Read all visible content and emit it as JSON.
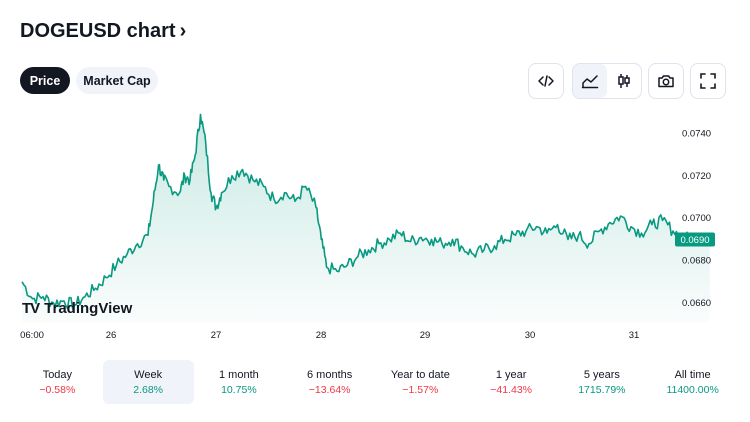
{
  "header": {
    "title": "DOGEUSD chart",
    "chevron": "›"
  },
  "tabs": [
    {
      "label": "Price",
      "active": true
    },
    {
      "label": "Market Cap",
      "active": false
    }
  ],
  "toolbar": {
    "icons": [
      "embed-code-icon",
      "area-chart-icon",
      "candlestick-icon",
      "camera-icon",
      "fullscreen-icon"
    ],
    "selected": "area-chart-icon"
  },
  "chart_data": {
    "type": "area",
    "x_ticks": [
      "06:00",
      "26",
      "27",
      "28",
      "29",
      "30",
      "31"
    ],
    "y_ticks": [
      "0.0740",
      "0.0720",
      "0.0700",
      "0.0680",
      "0.0660"
    ],
    "ylim": [
      0.0652,
      0.0752
    ],
    "last_price": "0.0690",
    "line_color": "#089981",
    "points": [
      [
        0.0,
        0.067
      ],
      [
        0.1,
        0.0662
      ],
      [
        0.2,
        0.0663
      ],
      [
        0.3,
        0.066
      ],
      [
        0.4,
        0.0661
      ],
      [
        0.5,
        0.0659
      ],
      [
        0.6,
        0.0663
      ],
      [
        0.7,
        0.0667
      ],
      [
        0.8,
        0.0672
      ],
      [
        0.9,
        0.0678
      ],
      [
        1.0,
        0.0683
      ],
      [
        1.1,
        0.0688
      ],
      [
        1.2,
        0.0692
      ],
      [
        1.25,
        0.0708
      ],
      [
        1.3,
        0.0725
      ],
      [
        1.35,
        0.0718
      ],
      [
        1.4,
        0.0715
      ],
      [
        1.5,
        0.0712
      ],
      [
        1.55,
        0.072
      ],
      [
        1.6,
        0.0718
      ],
      [
        1.65,
        0.073
      ],
      [
        1.7,
        0.0749
      ],
      [
        1.75,
        0.0735
      ],
      [
        1.8,
        0.0712
      ],
      [
        1.85,
        0.0705
      ],
      [
        1.9,
        0.0712
      ],
      [
        2.0,
        0.072
      ],
      [
        2.1,
        0.0723
      ],
      [
        2.2,
        0.0718
      ],
      [
        2.3,
        0.0715
      ],
      [
        2.4,
        0.0709
      ],
      [
        2.5,
        0.0712
      ],
      [
        2.6,
        0.0708
      ],
      [
        2.7,
        0.0715
      ],
      [
        2.8,
        0.0705
      ],
      [
        2.85,
        0.069
      ],
      [
        2.9,
        0.0677
      ],
      [
        3.0,
        0.0675
      ],
      [
        3.1,
        0.0678
      ],
      [
        3.2,
        0.0682
      ],
      [
        3.3,
        0.0685
      ],
      [
        3.4,
        0.0688
      ],
      [
        3.5,
        0.069
      ],
      [
        3.6,
        0.0693
      ],
      [
        3.7,
        0.0689
      ],
      [
        3.8,
        0.0691
      ],
      [
        3.9,
        0.069
      ],
      [
        4.0,
        0.0688
      ],
      [
        4.1,
        0.069
      ],
      [
        4.2,
        0.0686
      ],
      [
        4.3,
        0.0683
      ],
      [
        4.4,
        0.0685
      ],
      [
        4.5,
        0.0687
      ],
      [
        4.6,
        0.069
      ],
      [
        4.7,
        0.0692
      ],
      [
        4.8,
        0.0694
      ],
      [
        4.9,
        0.0696
      ],
      [
        5.0,
        0.0693
      ],
      [
        5.1,
        0.0697
      ],
      [
        5.2,
        0.069
      ],
      [
        5.3,
        0.0692
      ],
      [
        5.4,
        0.0688
      ],
      [
        5.5,
        0.0694
      ],
      [
        5.6,
        0.0698
      ],
      [
        5.7,
        0.0701
      ],
      [
        5.8,
        0.0696
      ],
      [
        5.9,
        0.0693
      ],
      [
        6.0,
        0.0697
      ],
      [
        6.1,
        0.0699
      ],
      [
        6.2,
        0.0694
      ],
      [
        6.3,
        0.0691
      ],
      [
        6.4,
        0.069
      ],
      [
        6.55,
        0.069
      ]
    ]
  },
  "watermark": {
    "mark": "TV",
    "text": "TradingView"
  },
  "periods": [
    {
      "label": "Today",
      "value": "−0.58%",
      "sign": "neg",
      "selected": false
    },
    {
      "label": "Week",
      "value": "2.68%",
      "sign": "pos",
      "selected": true
    },
    {
      "label": "1 month",
      "value": "10.75%",
      "sign": "pos",
      "selected": false
    },
    {
      "label": "6 months",
      "value": "−13.64%",
      "sign": "neg",
      "selected": false
    },
    {
      "label": "Year to date",
      "value": "−1.57%",
      "sign": "neg",
      "selected": false
    },
    {
      "label": "1 year",
      "value": "−41.43%",
      "sign": "neg",
      "selected": false
    },
    {
      "label": "5 years",
      "value": "1715.79%",
      "sign": "pos",
      "selected": false
    },
    {
      "label": "All time",
      "value": "11400.00%",
      "sign": "pos",
      "selected": false
    }
  ]
}
